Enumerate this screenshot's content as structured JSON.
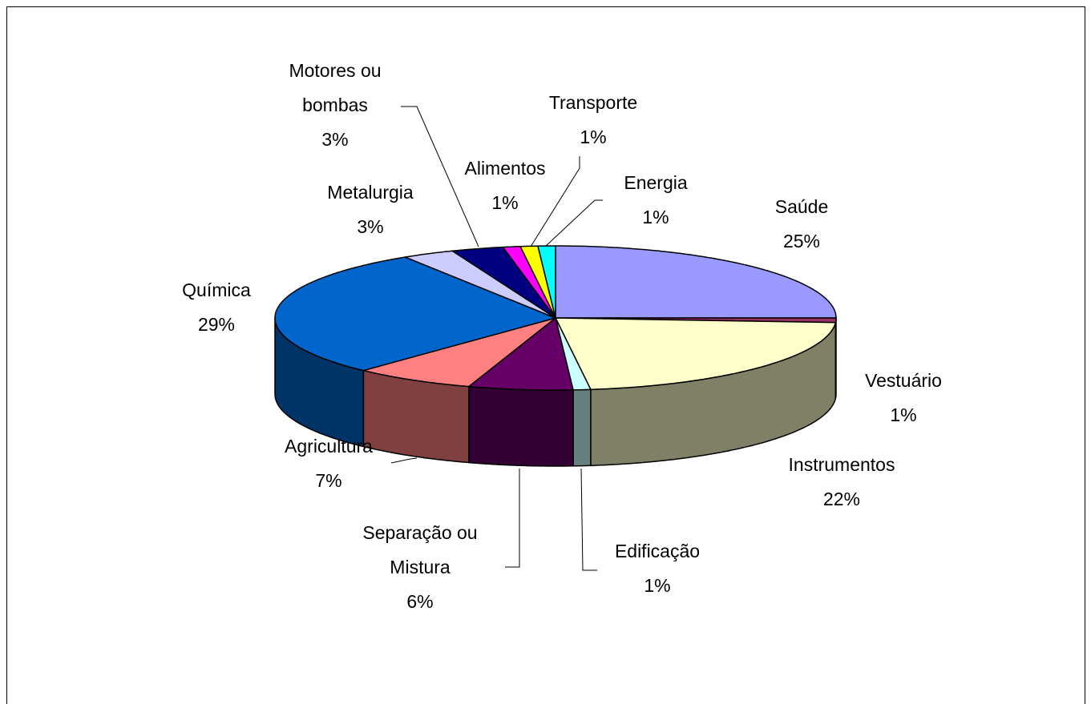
{
  "chart_data": {
    "type": "pie3d",
    "categories": [
      "Saúde",
      "Vestuário",
      "Instrumentos",
      "Edificação",
      "Separação ou Mistura",
      "Agricultura",
      "Química",
      "Metalurgia",
      "Motores ou bombas",
      "Alimentos",
      "Transporte",
      "Energia"
    ],
    "values": [
      25,
      1,
      22,
      1,
      6,
      7,
      29,
      3,
      3,
      1,
      1,
      1
    ],
    "value_labels": [
      "25%",
      "1%",
      "22%",
      "1%",
      "6%",
      "7%",
      "29%",
      "3%",
      "3%",
      "1%",
      "1%",
      "1%"
    ],
    "colors": [
      "#9999ff",
      "#993366",
      "#ffffcc",
      "#ccffff",
      "#660066",
      "#ff8080",
      "#0066cc",
      "#ccccff",
      "#000080",
      "#ff00ff",
      "#ffff00",
      "#00ffff"
    ]
  }
}
